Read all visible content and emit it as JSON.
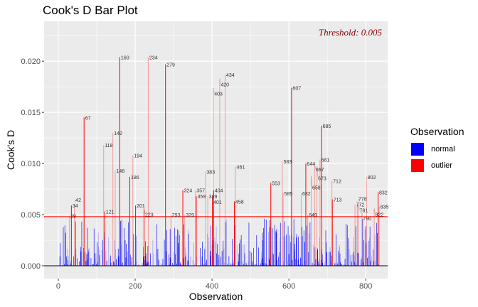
{
  "chart_data": {
    "type": "bar",
    "title": "Cook's D Bar Plot",
    "xlabel": "Observation",
    "ylabel": "Cook's D",
    "xlim": [
      -37,
      857
    ],
    "ylim": [
      -0.00125,
      0.0239
    ],
    "x_ticks": [
      0,
      200,
      400,
      600,
      800
    ],
    "x_tick_labels": [
      "0",
      "200",
      "400",
      "600",
      "800"
    ],
    "y_ticks": [
      0,
      0.005,
      0.01,
      0.015,
      0.02
    ],
    "y_tick_labels": [
      "0.000",
      "0.005",
      "0.010",
      "0.015",
      "0.020"
    ],
    "n_observations": 835,
    "threshold_line": 0.0048,
    "threshold_text": "Threshold: 0.005",
    "legend": {
      "title": "Observation",
      "placement": "right",
      "entries": [
        {
          "label": "normal",
          "color": "#0000ff"
        },
        {
          "label": "outlier",
          "color": "#ff0000"
        }
      ]
    },
    "normal_color": "#0000ff",
    "outlier_color": "#ff0000",
    "threshold_color": "#ff0000",
    "outliers": [
      {
        "obs": 29,
        "value": 0.0049,
        "faded": true
      },
      {
        "obs": 34,
        "value": 0.0059,
        "faded": false
      },
      {
        "obs": 42,
        "value": 0.0059,
        "faded": true
      },
      {
        "obs": 67,
        "value": 0.0145,
        "faded": false
      },
      {
        "obs": 118,
        "value": 0.0118,
        "faded": true
      },
      {
        "obs": 121,
        "value": 0.0053,
        "faded": false
      },
      {
        "obs": 142,
        "value": 0.013,
        "faded": true
      },
      {
        "obs": 148,
        "value": 0.0093,
        "faded": true
      },
      {
        "obs": 160,
        "value": 0.0204,
        "faded": false
      },
      {
        "obs": 186,
        "value": 0.0087,
        "faded": false
      },
      {
        "obs": 194,
        "value": 0.0108,
        "faded": true
      },
      {
        "obs": 201,
        "value": 0.0059,
        "faded": false
      },
      {
        "obs": 223,
        "value": 0.0056,
        "faded": false
      },
      {
        "obs": 234,
        "value": 0.0204,
        "faded": true
      },
      {
        "obs": 279,
        "value": 0.0197,
        "faded": false
      },
      {
        "obs": 293,
        "value": 0.005,
        "faded": true
      },
      {
        "obs": 324,
        "value": 0.0074,
        "faded": false
      },
      {
        "obs": 329,
        "value": 0.005,
        "faded": true
      },
      {
        "obs": 357,
        "value": 0.0074,
        "faded": true
      },
      {
        "obs": 359,
        "value": 0.0068,
        "faded": false
      },
      {
        "obs": 383,
        "value": 0.0092,
        "faded": true
      },
      {
        "obs": 389,
        "value": 0.0068,
        "faded": true
      },
      {
        "obs": 401,
        "value": 0.0068,
        "faded": false
      },
      {
        "obs": 403,
        "value": 0.0174,
        "faded": true
      },
      {
        "obs": 404,
        "value": 0.0074,
        "faded": false
      },
      {
        "obs": 420,
        "value": 0.0183,
        "faded": true
      },
      {
        "obs": 434,
        "value": 0.0187,
        "faded": true
      },
      {
        "obs": 458,
        "value": 0.0063,
        "faded": false
      },
      {
        "obs": 461,
        "value": 0.0097,
        "faded": true
      },
      {
        "obs": 553,
        "value": 0.0081,
        "faded": false
      },
      {
        "obs": 583,
        "value": 0.0102,
        "faded": true
      },
      {
        "obs": 585,
        "value": 0.0071,
        "faded": true
      },
      {
        "obs": 607,
        "value": 0.0174,
        "faded": false
      },
      {
        "obs": 632,
        "value": 0.0071,
        "faded": true
      },
      {
        "obs": 644,
        "value": 0.01,
        "faded": false
      },
      {
        "obs": 649,
        "value": 0.005,
        "faded": true
      },
      {
        "obs": 658,
        "value": 0.0088,
        "faded": true
      },
      {
        "obs": 667,
        "value": 0.01,
        "faded": true
      },
      {
        "obs": 673,
        "value": 0.0097,
        "faded": true
      },
      {
        "obs": 681,
        "value": 0.0104,
        "faded": true
      },
      {
        "obs": 685,
        "value": 0.0137,
        "faded": false
      },
      {
        "obs": 712,
        "value": 0.0083,
        "faded": true
      },
      {
        "obs": 713,
        "value": 0.0065,
        "faded": false
      },
      {
        "obs": 772,
        "value": 0.006,
        "faded": true
      },
      {
        "obs": 778,
        "value": 0.006,
        "faded": true
      },
      {
        "obs": 781,
        "value": 0.006,
        "faded": true
      },
      {
        "obs": 790,
        "value": 0.0052,
        "faded": true
      },
      {
        "obs": 802,
        "value": 0.0087,
        "faded": true
      },
      {
        "obs": 822,
        "value": 0.0056,
        "faded": true
      },
      {
        "obs": 832,
        "value": 0.0072,
        "faded": false
      },
      {
        "obs": 835,
        "value": 0.0058,
        "faded": true
      }
    ]
  }
}
